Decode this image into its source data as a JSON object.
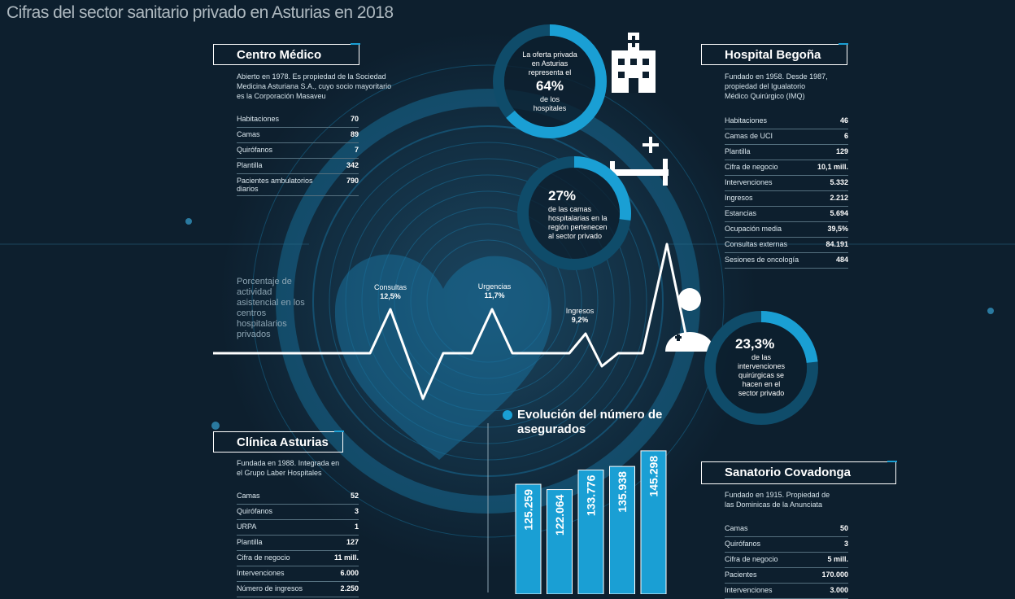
{
  "title": "Cifras del sector sanitario privado en Asturias en 2018",
  "colors": {
    "background": "#0d1f2e",
    "accent": "#1a9fd4",
    "bar": "#1a9fd4",
    "text": "#ffffff"
  },
  "centro_medico": {
    "title": "Centro Médico",
    "desc": [
      "Abierto en 1978. Es propiedad de la Sociedad",
      "Medicina Asturiana S.A., cuyo socio mayoritario",
      "es la Corporación Masaveu"
    ],
    "rows": [
      {
        "label": "Habitaciones",
        "value": "70"
      },
      {
        "label": "Camas",
        "value": "89"
      },
      {
        "label": "Quirófanos",
        "value": "7"
      },
      {
        "label": "Plantilla",
        "value": "342"
      },
      {
        "label": "Pacientes ambulatorios diarios",
        "value": "790"
      }
    ]
  },
  "hospital_begona": {
    "title": "Hospital Begoña",
    "desc": [
      "Fundado en 1958. Desde 1987,",
      "propiedad del Igualatorio",
      "Médico Quirúrgico (IMQ)"
    ],
    "rows": [
      {
        "label": "Habitaciones",
        "value": "46"
      },
      {
        "label": "Camas de UCI",
        "value": "6"
      },
      {
        "label": "Plantilla",
        "value": "129"
      },
      {
        "label": "Cifra de negocio",
        "value": "10,1 mill."
      },
      {
        "label": "Intervenciones",
        "value": "5.332"
      },
      {
        "label": "Ingresos",
        "value": "2.212"
      },
      {
        "label": "Estancias",
        "value": "5.694"
      },
      {
        "label": "Ocupación media",
        "value": "39,5%"
      },
      {
        "label": "Consultas externas",
        "value": "84.191"
      },
      {
        "label": "Sesiones de oncología",
        "value": "484"
      }
    ]
  },
  "clinica_asturias": {
    "title": "Clínica Asturias",
    "desc": [
      "Fundada en 1988. Integrada en",
      "el Grupo Laber Hospitales"
    ],
    "rows": [
      {
        "label": "Camas",
        "value": "52"
      },
      {
        "label": "Quirófanos",
        "value": "3"
      },
      {
        "label": "URPA",
        "value": "1"
      },
      {
        "label": "Plantilla",
        "value": "127"
      },
      {
        "label": "Cifra de negocio",
        "value": "11 mill."
      },
      {
        "label": "Intervenciones",
        "value": "6.000"
      },
      {
        "label": "Número de ingresos",
        "value": "2.250"
      }
    ]
  },
  "sanatorio_covadonga": {
    "title": "Sanatorio Covadonga",
    "desc": [
      "Fundado en 1915. Propiedad de",
      "las Dominicas de la Anunciata"
    ],
    "rows": [
      {
        "label": "Camas",
        "value": "50"
      },
      {
        "label": "Quirófanos",
        "value": "3"
      },
      {
        "label": "Cifra de negocio",
        "value": "5 mill."
      },
      {
        "label": "Pacientes",
        "value": "170.000"
      },
      {
        "label": "Intervenciones",
        "value": "3.000"
      }
    ]
  },
  "circle_64": {
    "pre": [
      "La oferta privada",
      "en Asturias",
      "representa el"
    ],
    "value": "64%",
    "post": [
      "de los",
      "hospitales"
    ]
  },
  "circle_27": {
    "value": "27%",
    "post": [
      "de las camas",
      "hospitalarias en la",
      "región pertenecen",
      "al sector privado"
    ]
  },
  "circle_23": {
    "value": "23,3%",
    "post": [
      "de las",
      "intervenciones",
      "quirúrgicas se",
      "hacen en el",
      "sector privado"
    ]
  },
  "activity": {
    "label": "Porcentaje de actividad asistencial en los centros hospitalarios privados",
    "items": [
      {
        "name": "Consultas",
        "value": "12,5%"
      },
      {
        "name": "Urgencias",
        "value": "11,7%"
      },
      {
        "name": "Ingresos",
        "value": "9,2%"
      }
    ]
  },
  "chart_data": {
    "type": "bar",
    "title": "Evolución del número de asegurados",
    "categories": [
      "",
      "",
      "",
      "",
      ""
    ],
    "values": [
      125259,
      122064,
      133776,
      135938,
      145298
    ],
    "value_labels": [
      "125.259",
      "122.064",
      "133.776",
      "135.938",
      "145.298"
    ],
    "xlabel": "",
    "ylabel": "",
    "ylim": [
      0,
      160000
    ]
  }
}
